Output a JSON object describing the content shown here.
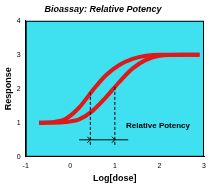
{
  "chart_data": {
    "type": "line",
    "title": "Bioassay: Relative Potency",
    "x_label": "Log[dose]",
    "y_label": "Response",
    "x": [
      -0.7,
      -0.4,
      -0.1,
      0.2,
      0.5,
      0.8,
      1.1,
      1.4,
      1.7,
      2.0,
      2.5,
      2.9
    ],
    "series": [
      {
        "color": "#e01818",
        "line_style": "solid",
        "values": [
          1.0,
          1.02,
          1.12,
          1.45,
          1.95,
          2.4,
          2.7,
          2.88,
          2.97,
          3.0,
          3.0,
          3.0
        ]
      },
      {
        "color": "#e01818",
        "line_style": "solid",
        "values": [
          1.0,
          1.0,
          1.02,
          1.1,
          1.35,
          1.75,
          2.2,
          2.6,
          2.85,
          2.97,
          3.0,
          3.0
        ]
      }
    ],
    "xlim": [
      -1,
      3
    ],
    "ylim": [
      0,
      4
    ],
    "xticks": [
      -1,
      0,
      1,
      2,
      3
    ],
    "yticks": [
      0,
      1,
      2,
      3,
      4
    ],
    "grid": false,
    "annotations": [
      {
        "text": "Relative Potency",
        "x": 1.25,
        "y": 0.9
      }
    ],
    "dose_lines": [
      {
        "x": 0.45,
        "from": 0.35,
        "to": 1.9
      },
      {
        "x": 1.0,
        "from": 0.35,
        "to": 2.1
      }
    ],
    "potency_span": {
      "from": 0.2,
      "to": 1.3,
      "y": 0.5
    }
  }
}
